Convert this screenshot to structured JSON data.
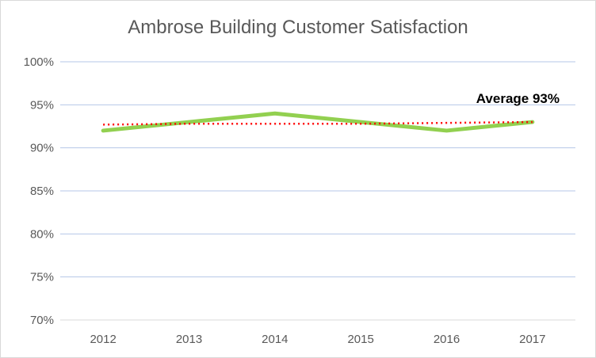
{
  "chart_data": {
    "type": "line",
    "title": "Ambrose Building Customer Satisfaction",
    "categories": [
      "2012",
      "2013",
      "2014",
      "2015",
      "2016",
      "2017"
    ],
    "series": [
      {
        "values": [
          0.92,
          0.93,
          0.94,
          0.93,
          0.92,
          0.93
        ],
        "color": "#92d050",
        "style": "solid"
      },
      {
        "values": [
          0.927,
          0.928,
          0.928,
          0.928,
          0.929,
          0.93
        ],
        "color": "#ff0000",
        "style": "dotted",
        "kind": "trendline"
      }
    ],
    "ylim": [
      0.7,
      1.0
    ],
    "yticks": [
      0.7,
      0.75,
      0.8,
      0.85,
      0.9,
      0.95,
      1.0
    ],
    "ytick_labels": [
      "70%",
      "75%",
      "80%",
      "85%",
      "90%",
      "95%",
      "100%"
    ],
    "grid": true,
    "gridline_color": "#b4c7e7",
    "annotations": [
      {
        "text": "Average 93%",
        "position": "top-right"
      }
    ]
  }
}
